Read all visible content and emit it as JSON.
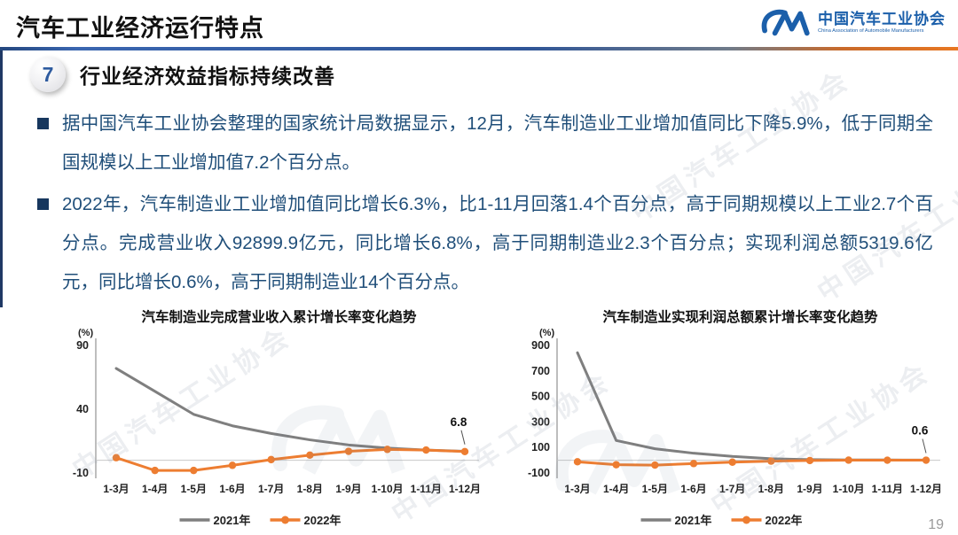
{
  "slide": {
    "title": "汽车工业经济运行特点",
    "page_number": "19"
  },
  "logo": {
    "monogram": "CM-monogram",
    "org_cn": "中国汽车工业协会",
    "org_en": "China Association of Automobile Manufacturers"
  },
  "section": {
    "number": "7",
    "heading": "行业经济效益指标持续改善"
  },
  "bullets": [
    "据中国汽车工业协会整理的国家统计局数据显示，12月，汽车制造业工业增加值同比下降5.9%，低于同期全国规模以上工业增加值7.2个百分点。",
    "2022年，汽车制造业工业增加值同比增长6.3%，比1-11月回落1.4个百分点，高于同期规模以上工业2.7个百分点。完成营业收入92899.9亿元，同比增长6.8%，高于同期制造业2.3个百分点；实现利润总额5319.6亿元，同比增长0.6%，高于同期制造业14个百分点。"
  ],
  "watermark": {
    "text": "中国汽车工业协会"
  },
  "colors": {
    "bullet_text": "#1F4E79",
    "line_gray": "#7F7F7F",
    "line_orange": "#ED7D31",
    "header_blue": "#2F5597",
    "header_orange": "#E87722"
  },
  "chart_data": [
    {
      "type": "line",
      "title": "汽车制造业完成营业收入累计增长率变化趋势",
      "unit_label": "(%)",
      "categories": [
        "1-3月",
        "1-4月",
        "1-5月",
        "1-6月",
        "1-7月",
        "1-8月",
        "1-9月",
        "1-10月",
        "1-11月",
        "1-12月"
      ],
      "series": [
        {
          "name": "2021年",
          "color": "#7F7F7F",
          "markers": false,
          "values": [
            72,
            54,
            36,
            27,
            21,
            16,
            12,
            9.5,
            8,
            7
          ]
        },
        {
          "name": "2022年",
          "color": "#ED7D31",
          "markers": true,
          "values": [
            2,
            -8,
            -8,
            -4,
            0.5,
            4,
            7,
            8.5,
            8,
            6.8
          ]
        }
      ],
      "ylim": [
        -10,
        90
      ],
      "yticks": [
        90,
        40,
        -10
      ],
      "zero_line": true,
      "end_label": {
        "series": "2022年",
        "text": "6.8"
      },
      "legend_position": "bottom",
      "grid": false
    },
    {
      "type": "line",
      "title": "汽车制造业实现利润总额累计增长率变化趋势",
      "unit_label": "(%)",
      "categories": [
        "1-3月",
        "1-4月",
        "1-5月",
        "1-6月",
        "1-7月",
        "1-8月",
        "1-9月",
        "1-10月",
        "1-11月",
        "1-12月"
      ],
      "series": [
        {
          "name": "2021年",
          "color": "#7F7F7F",
          "markers": false,
          "values": [
            843,
            155,
            90,
            55,
            30,
            12,
            5,
            2,
            2,
            1.9
          ]
        },
        {
          "name": "2022年",
          "color": "#ED7D31",
          "markers": true,
          "values": [
            -12,
            -35,
            -38,
            -26,
            -15,
            -7,
            -2,
            0.8,
            0.3,
            0.6
          ]
        }
      ],
      "ylim": [
        -100,
        900
      ],
      "yticks": [
        900,
        700,
        500,
        300,
        100,
        -100
      ],
      "zero_line": true,
      "end_label": {
        "series": "2022年",
        "text": "0.6"
      },
      "legend_position": "bottom",
      "grid": false
    }
  ]
}
